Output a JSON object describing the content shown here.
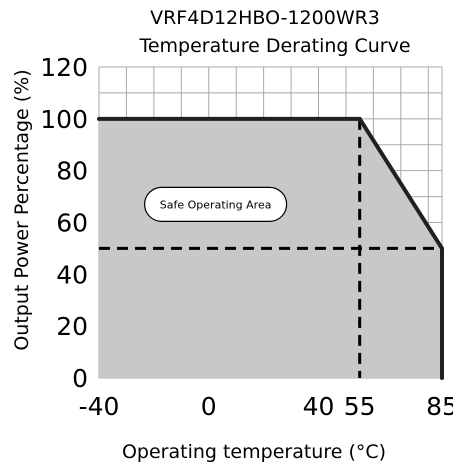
{
  "chart_data": {
    "type": "area",
    "title_line1": "VRF4D12HBO-1200WR3",
    "title_line2": "Temperature Derating Curve",
    "xlabel": "Operating temperature (°C)",
    "ylabel": "Output Power Percentage (%)",
    "xlim": [
      -40,
      85
    ],
    "ylim": [
      0,
      120
    ],
    "x_ticks": [
      -40,
      0,
      40,
      55,
      85
    ],
    "y_ticks": [
      0,
      20,
      40,
      60,
      80,
      100,
      120
    ],
    "grid": true,
    "series": [
      {
        "x": [
          -40,
          55,
          85,
          85
        ],
        "y": [
          100,
          100,
          50,
          0
        ]
      }
    ],
    "reference_lines": [
      {
        "orientation": "vertical",
        "x": 55
      },
      {
        "orientation": "horizontal",
        "y": 50
      }
    ],
    "annotation": "Safe Operating Area",
    "colors": {
      "fill": "#c8c8c8",
      "curve": "#231f20",
      "grid": "#a8a8a8",
      "dashed": "#000000"
    }
  }
}
